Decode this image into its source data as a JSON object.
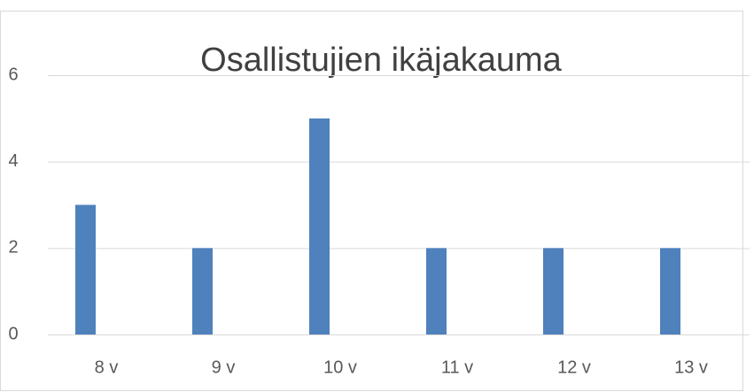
{
  "chart_data": {
    "type": "bar",
    "title": "Osallistujien ikäjakauma",
    "categories": [
      "8 v",
      "9 v",
      "10 v",
      "11 v",
      "12 v",
      "13 v"
    ],
    "values": [
      3,
      2,
      5,
      2,
      2,
      2
    ],
    "color": "#4f81bd",
    "ylim": [
      0,
      6
    ],
    "yticks": [
      0,
      2,
      4,
      6
    ],
    "grid": true
  }
}
